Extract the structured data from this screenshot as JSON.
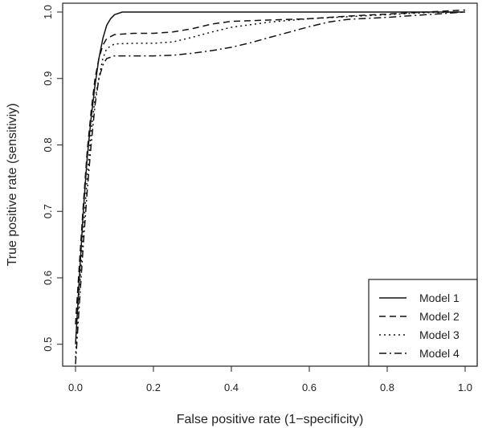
{
  "chart_data": {
    "type": "line",
    "xlabel": "False positive rate (1−specificity)",
    "ylabel": "True positive rate (sensitiviy)",
    "xlim": [
      0,
      1
    ],
    "ylim": [
      0.49,
      1.0
    ],
    "x_ticks": [
      "0.0",
      "0.2",
      "0.4",
      "0.6",
      "0.8",
      "1.0"
    ],
    "y_ticks": [
      "0.5",
      "0.6",
      "0.7",
      "0.8",
      "0.9",
      "1.0"
    ],
    "grid": false,
    "legend_position": "bottom-right",
    "series": [
      {
        "name": "Model 1",
        "dash": "solid",
        "color": "#111111",
        "points": [
          [
            0.0,
            0.5
          ],
          [
            0.01,
            0.6
          ],
          [
            0.02,
            0.7
          ],
          [
            0.03,
            0.78
          ],
          [
            0.04,
            0.84
          ],
          [
            0.05,
            0.89
          ],
          [
            0.06,
            0.93
          ],
          [
            0.07,
            0.96
          ],
          [
            0.08,
            0.98
          ],
          [
            0.09,
            0.99
          ],
          [
            0.1,
            0.996
          ],
          [
            0.12,
            1.0
          ],
          [
            1.0,
            1.0
          ]
        ]
      },
      {
        "name": "Model 2",
        "dash": "dashed",
        "color": "#111111",
        "points": [
          [
            0.0,
            0.53
          ],
          [
            0.01,
            0.62
          ],
          [
            0.02,
            0.71
          ],
          [
            0.03,
            0.79
          ],
          [
            0.04,
            0.85
          ],
          [
            0.05,
            0.9
          ],
          [
            0.06,
            0.93
          ],
          [
            0.07,
            0.95
          ],
          [
            0.08,
            0.96
          ],
          [
            0.1,
            0.966
          ],
          [
            0.15,
            0.968
          ],
          [
            0.2,
            0.968
          ],
          [
            0.25,
            0.97
          ],
          [
            0.3,
            0.975
          ],
          [
            0.35,
            0.982
          ],
          [
            0.4,
            0.986
          ],
          [
            0.5,
            0.988
          ],
          [
            0.6,
            0.99
          ],
          [
            0.7,
            0.994
          ],
          [
            0.8,
            0.997
          ],
          [
            0.9,
            1.0
          ],
          [
            1.0,
            1.003
          ]
        ]
      },
      {
        "name": "Model 3",
        "dash": "dotted",
        "color": "#111111",
        "points": [
          [
            0.0,
            0.48
          ],
          [
            0.01,
            0.58
          ],
          [
            0.02,
            0.67
          ],
          [
            0.03,
            0.75
          ],
          [
            0.04,
            0.82
          ],
          [
            0.05,
            0.87
          ],
          [
            0.06,
            0.9
          ],
          [
            0.07,
            0.93
          ],
          [
            0.08,
            0.945
          ],
          [
            0.1,
            0.952
          ],
          [
            0.15,
            0.953
          ],
          [
            0.2,
            0.953
          ],
          [
            0.25,
            0.955
          ],
          [
            0.3,
            0.962
          ],
          [
            0.35,
            0.97
          ],
          [
            0.4,
            0.977
          ],
          [
            0.5,
            0.985
          ],
          [
            0.6,
            0.99
          ],
          [
            0.7,
            0.993
          ],
          [
            0.8,
            0.996
          ],
          [
            0.9,
            0.999
          ],
          [
            1.0,
            1.0
          ]
        ]
      },
      {
        "name": "Model 4",
        "dash": "dashdot",
        "color": "#111111",
        "points": [
          [
            0.0,
            0.47
          ],
          [
            0.01,
            0.56
          ],
          [
            0.02,
            0.65
          ],
          [
            0.03,
            0.73
          ],
          [
            0.04,
            0.8
          ],
          [
            0.05,
            0.86
          ],
          [
            0.06,
            0.9
          ],
          [
            0.07,
            0.92
          ],
          [
            0.08,
            0.93
          ],
          [
            0.1,
            0.934
          ],
          [
            0.15,
            0.934
          ],
          [
            0.2,
            0.934
          ],
          [
            0.25,
            0.935
          ],
          [
            0.3,
            0.938
          ],
          [
            0.35,
            0.942
          ],
          [
            0.4,
            0.947
          ],
          [
            0.45,
            0.954
          ],
          [
            0.5,
            0.962
          ],
          [
            0.55,
            0.97
          ],
          [
            0.6,
            0.978
          ],
          [
            0.65,
            0.985
          ],
          [
            0.7,
            0.989
          ],
          [
            0.8,
            0.992
          ],
          [
            0.9,
            0.996
          ],
          [
            1.0,
            1.0
          ]
        ]
      }
    ]
  }
}
